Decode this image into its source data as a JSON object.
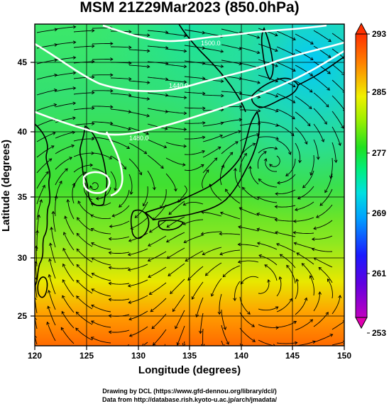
{
  "title": "MSM 21Z29Mar2023 (850.0hPa)",
  "xaxis": {
    "label": "Longitude (degrees)",
    "ticks": [
      120,
      125,
      130,
      135,
      140,
      145,
      150
    ],
    "range": [
      120,
      150
    ]
  },
  "yaxis": {
    "label": "Latitude  (degrees)",
    "ticks": [
      25,
      30,
      35,
      40,
      45
    ],
    "range": [
      22.4,
      47.6
    ]
  },
  "colorbar": {
    "ticks": [
      "293",
      "285",
      "277",
      "269",
      "261",
      "253"
    ],
    "range": [
      253,
      293
    ],
    "colors": [
      "#c000c0",
      "#1a1aff",
      "#00a0ff",
      "#00e0e0",
      "#00ee80",
      "#20e020",
      "#a0f000",
      "#f0f000",
      "#ff8000",
      "#ff3000"
    ]
  },
  "contour_labels": [
    {
      "text": "1500.0",
      "lon": 137.5,
      "lat": 45.6
    },
    {
      "text": "1440.0",
      "lon": 132.5,
      "lat": 43.3
    },
    {
      "text": "1480.0",
      "lon": 129.0,
      "lat": 39.1
    }
  ],
  "credits": {
    "line1": "Drawing by DCL (https://www.gfd-dennou.org/library/dcl/)",
    "line2": "Data from http://database.rish.kyoto-u.ac.jp/arch/jmadata/"
  }
}
